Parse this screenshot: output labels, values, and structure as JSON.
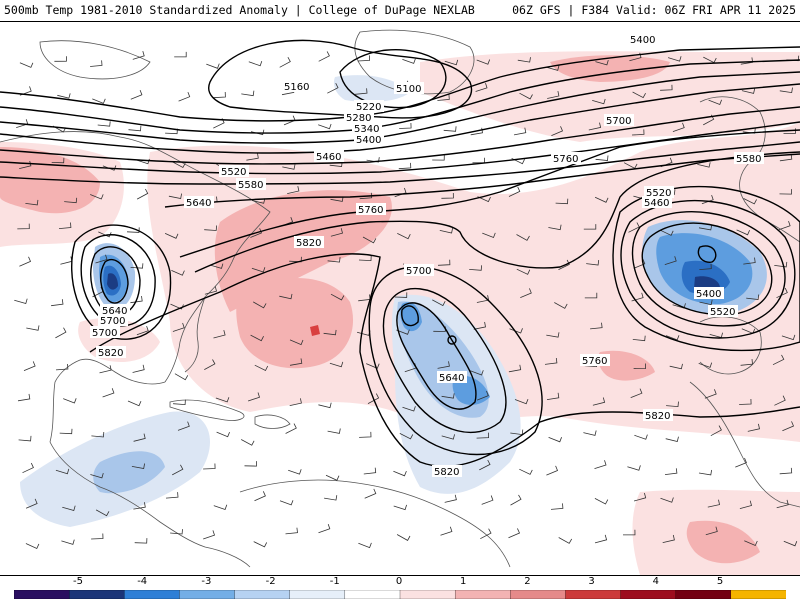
{
  "header": {
    "left_title": "500mb Temp 1981-2010 Standardized Anomaly | College of DuPage NEXLAB",
    "right_title": "06Z GFS | F384 Valid: 06Z FRI APR 11 2025"
  },
  "map": {
    "contour_labels": [
      {
        "text": "5160"
      },
      {
        "text": "5100"
      },
      {
        "text": "5220"
      },
      {
        "text": "5280"
      },
      {
        "text": "5340"
      },
      {
        "text": "5400"
      },
      {
        "text": "5460"
      },
      {
        "text": "5520"
      },
      {
        "text": "5580"
      },
      {
        "text": "5640"
      },
      {
        "text": "5700"
      },
      {
        "text": "5760"
      },
      {
        "text": "5820"
      },
      {
        "text": "5760"
      },
      {
        "text": "5700"
      },
      {
        "text": "5640"
      },
      {
        "text": "5700"
      },
      {
        "text": "5640"
      },
      {
        "text": "5820"
      },
      {
        "text": "5400"
      },
      {
        "text": "5700"
      },
      {
        "text": "5580"
      },
      {
        "text": "5520"
      },
      {
        "text": "5460"
      },
      {
        "text": "5400"
      },
      {
        "text": "5520"
      },
      {
        "text": "5760"
      },
      {
        "text": "5820"
      },
      {
        "text": "5820"
      }
    ],
    "colors": {
      "warm_light": "#fbe1e1",
      "warm_mid": "#f4b2b2",
      "warm_strong": "#e58585",
      "warm_core": "#d94040",
      "cold_light": "#dce6f4",
      "cold_mid": "#a9c6ea",
      "cold_strong": "#5d9ddf",
      "cold_core": "#2b6fc4",
      "cold_deep": "#1b3c83",
      "contour": "#000000",
      "coast": "#555555"
    }
  },
  "colorbar": {
    "ticks": [
      "-5",
      "-4",
      "-3",
      "-2",
      "-1",
      "0",
      "1",
      "2",
      "3",
      "4",
      "5"
    ],
    "colors": [
      "#2a0f60",
      "#1b3578",
      "#2e7fd6",
      "#73aee6",
      "#b6d2f2",
      "#e6eff9",
      "#ffffff",
      "#fbe1e1",
      "#f3b3b3",
      "#e58a8a",
      "#cc3a3a",
      "#9d0d1e",
      "#730012",
      "#f5b400"
    ]
  }
}
